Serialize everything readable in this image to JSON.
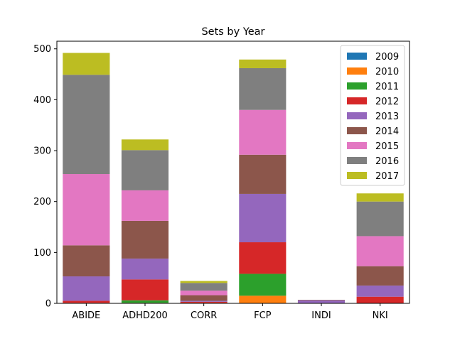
{
  "chart_data": {
    "type": "bar",
    "stacked": true,
    "title": "Sets by Year",
    "xlabel": "",
    "ylabel": "",
    "categories": [
      "ABIDE",
      "ADHD200",
      "CORR",
      "FCP",
      "INDI",
      "NKI"
    ],
    "ylim": [
      0,
      515
    ],
    "yticks": [
      0,
      100,
      200,
      300,
      400,
      500
    ],
    "grid": false,
    "legend_position": "top-right",
    "series": [
      {
        "name": "2009",
        "color": "#1f77b4",
        "values": [
          0,
          0,
          0,
          0,
          0,
          0
        ]
      },
      {
        "name": "2010",
        "color": "#ff7f0e",
        "values": [
          1,
          1,
          1,
          15,
          0,
          0
        ]
      },
      {
        "name": "2011",
        "color": "#2ca02c",
        "values": [
          0,
          5,
          0,
          43,
          0,
          0
        ]
      },
      {
        "name": "2012",
        "color": "#d62728",
        "values": [
          4,
          41,
          2,
          62,
          0,
          13
        ]
      },
      {
        "name": "2013",
        "color": "#9467bd",
        "values": [
          48,
          41,
          2,
          95,
          6,
          22
        ]
      },
      {
        "name": "2014",
        "color": "#8c564b",
        "values": [
          61,
          74,
          11,
          77,
          1,
          38
        ]
      },
      {
        "name": "2015",
        "color": "#e377c2",
        "values": [
          140,
          60,
          9,
          88,
          0,
          59
        ]
      },
      {
        "name": "2016",
        "color": "#7f7f7f",
        "values": [
          195,
          79,
          15,
          82,
          0,
          68
        ]
      },
      {
        "name": "2017",
        "color": "#bcbd22",
        "values": [
          43,
          21,
          4,
          17,
          0,
          16
        ]
      }
    ]
  }
}
